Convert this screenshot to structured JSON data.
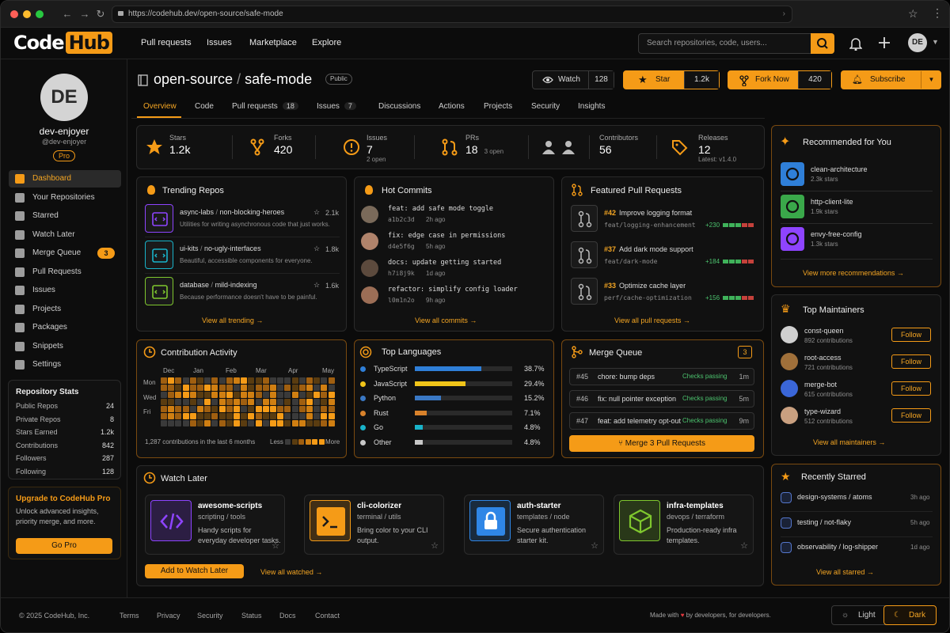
{
  "browser": {
    "url": "https://codehub.dev/open-source/safe-mode"
  },
  "brand": {
    "code": "Code",
    "hub": "Hub",
    "accent": "#f59b17"
  },
  "topnav": [
    "Pull requests",
    "Issues",
    "Marketplace",
    "Explore"
  ],
  "search": {
    "placeholder": "Search repositories, code, users..."
  },
  "user": {
    "initials": "DE",
    "name": "dev-enjoyer",
    "handle": "@dev-enjoyer",
    "plan": "Pro"
  },
  "sidebar": {
    "items": [
      {
        "label": "Dashboard",
        "icon": "home-icon"
      },
      {
        "label": "Your Repositories",
        "icon": "repo-icon"
      },
      {
        "label": "Starred",
        "icon": "star-icon"
      },
      {
        "label": "Watch Later",
        "icon": "clock-icon"
      },
      {
        "label": "Merge Queue",
        "icon": "merge-icon",
        "count": "3"
      },
      {
        "label": "Pull Requests",
        "icon": "pull-request-icon"
      },
      {
        "label": "Issues",
        "icon": "issue-icon"
      },
      {
        "label": "Projects",
        "icon": "projects-icon"
      },
      {
        "label": "Packages",
        "icon": "package-icon"
      },
      {
        "label": "Snippets",
        "icon": "snippet-icon"
      },
      {
        "label": "Settings",
        "icon": "gear-icon"
      }
    ]
  },
  "repo_stats": {
    "title": "Repository Stats",
    "rows": [
      {
        "label": "Public Repos",
        "value": "24"
      },
      {
        "label": "Private Repos",
        "value": "8"
      },
      {
        "label": "Stars Earned",
        "value": "1.2k"
      },
      {
        "label": "Contributions",
        "value": "842"
      },
      {
        "label": "Followers",
        "value": "287"
      },
      {
        "label": "Following",
        "value": "128"
      }
    ]
  },
  "upgrade": {
    "title": "Upgrade to CodeHub Pro",
    "desc": "Unlock advanced insights, priority merge, and more.",
    "button": "Go Pro"
  },
  "repo": {
    "owner": "open-source",
    "sep": "/",
    "name": "safe-mode",
    "visibility": "Public"
  },
  "actions": {
    "watch": "Watch",
    "watch_count": "128",
    "star": "Star",
    "star_count": "1.2k",
    "fork": "Fork Now",
    "fork_count": "420",
    "subscribe": "Subscribe"
  },
  "tabs": [
    {
      "label": "Overview"
    },
    {
      "label": "Code"
    },
    {
      "label": "Pull requests",
      "count": "18"
    },
    {
      "label": "Issues",
      "count": "7"
    },
    {
      "label": "Discussions"
    },
    {
      "label": "Actions"
    },
    {
      "label": "Projects"
    },
    {
      "label": "Security"
    },
    {
      "label": "Insights"
    }
  ],
  "stats": [
    {
      "label": "Stars",
      "value": "1.2k",
      "sub": ""
    },
    {
      "label": "Forks",
      "value": "420",
      "sub": ""
    },
    {
      "label": "Issues",
      "value": "7",
      "sub": "2 open"
    },
    {
      "label": "PRs",
      "value": "18",
      "sub": "3 open"
    },
    {
      "label": "Contributors",
      "value": "56",
      "sub": ""
    },
    {
      "label": "Releases",
      "value": "12",
      "sub": "Latest: v1.4.0"
    }
  ],
  "trending": {
    "title": "Trending Repos",
    "link": "View all trending →",
    "items": [
      {
        "owner": "async-labs",
        "name": "non-blocking-heroes",
        "desc": "Utilities for writing asynchronous code that just works.",
        "stars": "2.1k"
      },
      {
        "owner": "ui-kits",
        "name": "no-ugly-interfaces",
        "desc": "Beautiful, accessible components for everyone.",
        "stars": "1.8k"
      },
      {
        "owner": "database",
        "name": "mild-indexing",
        "desc": "Because performance doesn't have to be painful.",
        "stars": "1.6k"
      }
    ]
  },
  "commits": {
    "title": "Hot Commits",
    "link": "View all commits →",
    "items": [
      {
        "msg": "feat: add safe mode toggle",
        "hash": "a1b2c3d",
        "time": "2h ago"
      },
      {
        "msg": "fix: edge case in permissions",
        "hash": "d4e5f6g",
        "time": "5h ago"
      },
      {
        "msg": "docs: update getting started",
        "hash": "h7i8j9k",
        "time": "1d ago"
      },
      {
        "msg": "refactor: simplify config loader",
        "hash": "l0m1n2o",
        "time": "9h ago"
      }
    ]
  },
  "featured_prs": {
    "title": "Featured Pull Requests",
    "link": "View all pull requests →",
    "items": [
      {
        "num": "#42",
        "title": "Improve logging format",
        "branch": "feat/logging-enhancement",
        "adds": "+230"
      },
      {
        "num": "#37",
        "title": "Add dark mode support",
        "branch": "feat/dark-mode",
        "adds": "+184"
      },
      {
        "num": "#33",
        "title": "Optimize cache layer",
        "branch": "perf/cache-optimization",
        "adds": "+156"
      }
    ]
  },
  "contrib": {
    "title": "Contribution Activity",
    "months": [
      "Dec",
      "Jan",
      "Feb",
      "Mar",
      "Apr",
      "May"
    ],
    "days": [
      "Mon",
      "Wed",
      "Fri"
    ],
    "summary": "1,287 contributions in the last 6 months",
    "less": "Less",
    "more": "More"
  },
  "languages": {
    "title": "Top Languages",
    "items": [
      {
        "name": "TypeScript",
        "pct": "38.7%",
        "value": 38.7,
        "color": "#2f7fd8"
      },
      {
        "name": "JavaScript",
        "pct": "29.4%",
        "value": 29.4,
        "color": "#f0c419"
      },
      {
        "name": "Python",
        "pct": "15.2%",
        "value": 15.2,
        "color": "#3a78c4"
      },
      {
        "name": "Rust",
        "pct": "7.1%",
        "value": 7.1,
        "color": "#d9822b"
      },
      {
        "name": "Go",
        "pct": "4.8%",
        "value": 4.8,
        "color": "#19b3c9"
      },
      {
        "name": "Other",
        "pct": "4.8%",
        "value": 4.8,
        "color": "#c8c8c8"
      }
    ]
  },
  "merge_queue": {
    "title": "Merge Queue",
    "count": "3",
    "button": "Merge 3 Pull Requests",
    "items": [
      {
        "num": "#45",
        "title": "chore: bump deps",
        "status": "Checks passing",
        "time": "1m"
      },
      {
        "num": "#46",
        "title": "fix: null pointer exception",
        "status": "Checks passing",
        "time": "5m"
      },
      {
        "num": "#47",
        "title": "feat: add telemetry opt-out",
        "status": "Checks passing",
        "time": "9m"
      }
    ]
  },
  "watch_later": {
    "title": "Watch Later",
    "button": "Add to Watch Later",
    "link": "View all watched →",
    "items": [
      {
        "name": "awesome-scripts",
        "tags": "scripting / tools",
        "desc": "Handy scripts for everyday developer tasks.",
        "icon": "code-icon",
        "color": "#8e44ff"
      },
      {
        "name": "cli-colorizer",
        "tags": "terminal / utils",
        "desc": "Bring color to your CLI output.",
        "icon": "terminal-icon",
        "color": "#f59b17"
      },
      {
        "name": "auth-starter",
        "tags": "templates / node",
        "desc": "Secure authentication starter kit.",
        "icon": "lock-icon",
        "color": "#2f86e6"
      },
      {
        "name": "infra-templates",
        "tags": "devops / terraform",
        "desc": "Production-ready infra templates.",
        "icon": "cube-icon",
        "color": "#7fc72e"
      }
    ]
  },
  "recommended": {
    "title": "Recommended for You",
    "link": "View more recommendations →",
    "items": [
      {
        "name": "clean-architecture",
        "stars": "2.3k stars",
        "color": "#2f7fd8"
      },
      {
        "name": "http-client-lite",
        "stars": "1.9k stars",
        "color": "#3aa84a"
      },
      {
        "name": "envy-free-config",
        "stars": "1.3k stars",
        "color": "#8e44ff"
      }
    ]
  },
  "maintainers": {
    "title": "Top Maintainers",
    "link": "View all maintainers →",
    "follow": "Follow",
    "items": [
      {
        "name": "const-queen",
        "contrib": "892 contributions"
      },
      {
        "name": "root-access",
        "contrib": "721 contributions"
      },
      {
        "name": "merge-bot",
        "contrib": "615 contributions"
      },
      {
        "name": "type-wizard",
        "contrib": "512 contributions"
      }
    ]
  },
  "recent_starred": {
    "title": "Recently Starred",
    "link": "View all starred →",
    "items": [
      {
        "name": "design-systems / atoms",
        "time": "3h ago"
      },
      {
        "name": "testing / not-flaky",
        "time": "5h ago"
      },
      {
        "name": "observability / log-shipper",
        "time": "1d ago"
      }
    ]
  },
  "footer": {
    "copy": "© 2025 CodeHub, Inc.",
    "links": [
      "Terms",
      "Privacy",
      "Security",
      "Status",
      "Docs",
      "Contact"
    ],
    "made_a": "Made with",
    "made_b": "by developers, for developers.",
    "light": "Light",
    "dark": "Dark"
  }
}
